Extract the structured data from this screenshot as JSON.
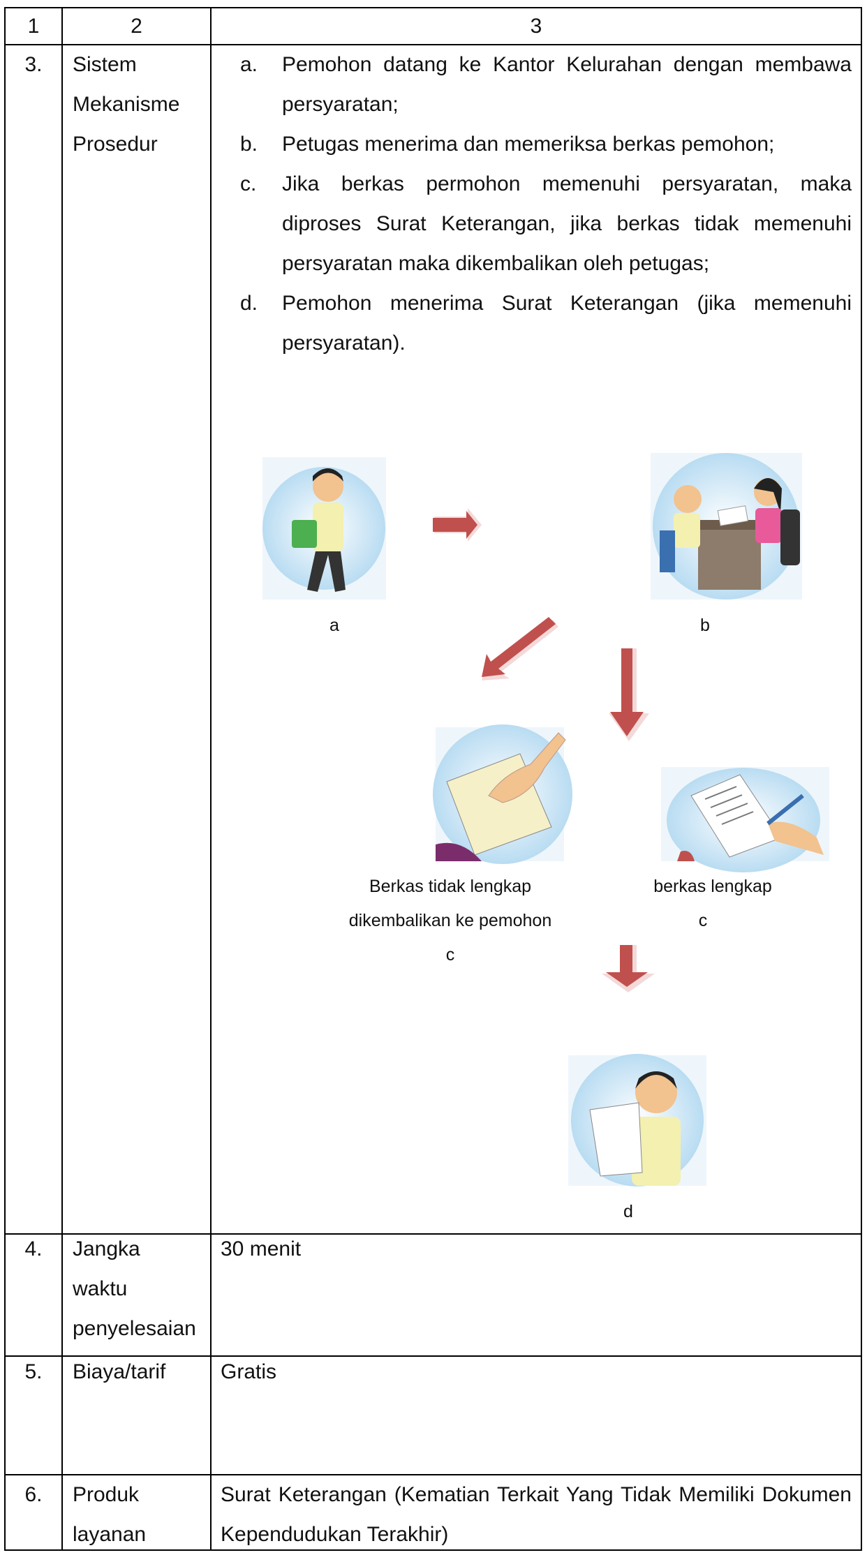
{
  "table": {
    "header": [
      "1",
      "2",
      "3"
    ],
    "rows": [
      {
        "no": "3.",
        "item": "Sistem Mekanisme Prosedur",
        "steps": [
          {
            "marker": "a.",
            "text": "Pemohon datang ke Kantor Kelurahan dengan membawa persyaratan;"
          },
          {
            "marker": "b.",
            "text": "Petugas menerima dan memeriksa berkas pemohon;"
          },
          {
            "marker": "c.",
            "text": "Jika berkas permohon memenuhi persyaratan, maka diproses Surat Keterangan, jika berkas tidak memenuhi persyaratan maka dikembalikan oleh petugas;"
          },
          {
            "marker": "d.",
            "text": "Pemohon menerima Surat Keterangan (jika memenuhi persyaratan)."
          }
        ]
      },
      {
        "no": "4.",
        "item": "Jangka waktu penyelesaian",
        "content": "30 menit"
      },
      {
        "no": "5.",
        "item": "Biaya/tarif",
        "content": "Gratis"
      },
      {
        "no": "6.",
        "item": "Produk layanan",
        "content": "Surat Keterangan (Kematian Terkait Yang Tidak Memiliki Dokumen Kependudukan Terakhir)"
      }
    ]
  },
  "diagram": {
    "labels": [
      "a",
      "b",
      "Berkas tidak lengkap",
      "dikembalikan ke pemohon",
      "c",
      "berkas lengkap",
      "c",
      "d"
    ]
  }
}
